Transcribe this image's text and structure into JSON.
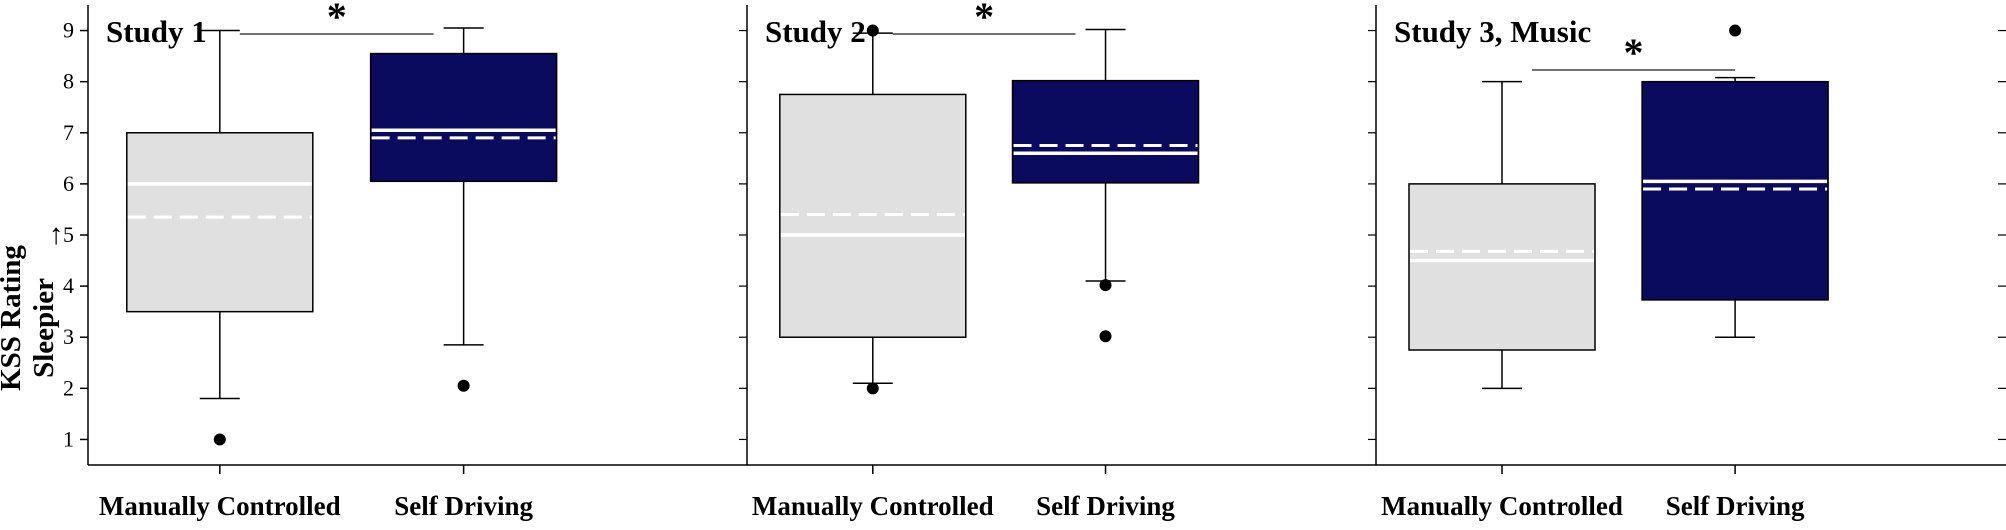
{
  "chart_data": {
    "type": "box",
    "ylabel_line1": "KSS Rating",
    "ylabel_line2": "Sleepier",
    "ylabel_arrow": "→",
    "ylim": [
      0.5,
      9.5
    ],
    "yticks": [
      1,
      2,
      3,
      4,
      5,
      6,
      7,
      8,
      9
    ],
    "categories": [
      "Manually Controlled",
      "Self Driving"
    ],
    "colors": {
      "manual": "#e0e0e0",
      "self": "#0a0a5e",
      "outline": "#000000",
      "median": "#ffffff"
    },
    "legend": "none",
    "grid": false,
    "panels": [
      {
        "title": "Study 1",
        "significance": "*",
        "boxes": [
          {
            "category": "Manually Controlled",
            "q1": 3.5,
            "median": 6.0,
            "mean": 5.35,
            "q3": 7.0,
            "whisker_low": 1.8,
            "whisker_high": 9.0,
            "outliers": [
              1.0
            ]
          },
          {
            "category": "Self Driving",
            "q1": 6.05,
            "median": 7.05,
            "mean": 6.9,
            "q3": 8.55,
            "whisker_low": 2.85,
            "whisker_high": 9.05,
            "outliers": [
              2.05
            ]
          }
        ]
      },
      {
        "title": "Study 2",
        "significance": "*",
        "boxes": [
          {
            "category": "Manually Controlled",
            "q1": 3.0,
            "median": 5.0,
            "mean": 5.4,
            "q3": 7.75,
            "whisker_low": 2.1,
            "whisker_high": 8.95,
            "outliers": [
              2.0,
              9.0
            ]
          },
          {
            "category": "Self Driving",
            "q1": 6.02,
            "median": 6.6,
            "mean": 6.75,
            "q3": 8.02,
            "whisker_low": 4.1,
            "whisker_high": 9.02,
            "outliers": [
              4.02,
              3.02
            ]
          }
        ]
      },
      {
        "title": "Study 3, Music",
        "significance": "*",
        "boxes": [
          {
            "category": "Manually Controlled",
            "q1": 2.75,
            "median": 4.5,
            "mean": 4.68,
            "q3": 6.0,
            "whisker_low": 2.0,
            "whisker_high": 8.0,
            "outliers": []
          },
          {
            "category": "Self Driving",
            "q1": 3.73,
            "median": 6.05,
            "mean": 5.9,
            "q3": 8.0,
            "whisker_low": 3.0,
            "whisker_high": 8.08,
            "outliers": [
              9.0
            ]
          }
        ]
      }
    ]
  }
}
